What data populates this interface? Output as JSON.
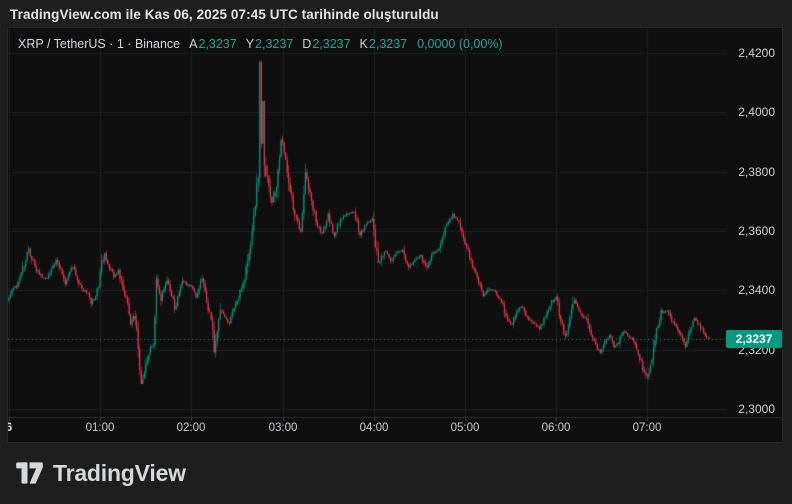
{
  "topbar": {
    "attribution": "TradingView.com ile Kas 06, 2025 07:45 UTC tarihinde oluşturuldu"
  },
  "legend": {
    "symbol_line": "XRP / TetherUS · 1 · Binance",
    "ohlc": [
      {
        "label": "A",
        "value": "2,3237"
      },
      {
        "label": "Y",
        "value": "2,3237"
      },
      {
        "label": "D",
        "value": "2,3237"
      },
      {
        "label": "K",
        "value": "2,3237"
      }
    ],
    "change": "0,0000 (0,00%)"
  },
  "price_scale": {
    "current": {
      "label": "2,3237",
      "value": 2.3237
    }
  },
  "footer": {
    "brand": "TradingView",
    "logo_icon": "tradingview-logo"
  },
  "colors": {
    "up": "#089981",
    "down": "#f23645",
    "accent_text": "#26a69a",
    "grid": "#1f2022",
    "axis_border": "#2c2e31",
    "axis_tick": "#3a3c40",
    "chart_bg": "#0f0f0f",
    "outer_bg": "#1e1e1e"
  },
  "chart_data": {
    "type": "candlestick",
    "title": "XRP / TetherUS · 1 · Binance",
    "interval_minutes": 1,
    "grid": true,
    "last_close": 2.3237,
    "session_high": 2.4165,
    "session_low": 2.3086,
    "y_axis": {
      "visible_range": [
        2.2973,
        2.4284
      ],
      "ticks": [
        {
          "label": "2,4200",
          "price": 2.42
        },
        {
          "label": "2,4000",
          "price": 2.4
        },
        {
          "label": "2,3800",
          "price": 2.38
        },
        {
          "label": "2,3600",
          "price": 2.36
        },
        {
          "label": "2,3400",
          "price": 2.34
        },
        {
          "label": "2,3200",
          "price": 2.32
        },
        {
          "label": "2,3000",
          "price": 2.3
        }
      ]
    },
    "x_axis": {
      "unit": "minutes after 00:00 UTC, Kas 06 2025",
      "ticks": [
        {
          "label": "6",
          "minute": 0,
          "day_boundary": true
        },
        {
          "label": "01:00",
          "minute": 60
        },
        {
          "label": "02:00",
          "minute": 120
        },
        {
          "label": "03:00",
          "minute": 180
        },
        {
          "label": "04:00",
          "minute": 240
        },
        {
          "label": "05:00",
          "minute": 300
        },
        {
          "label": "06:00",
          "minute": 360
        },
        {
          "label": "07:00",
          "minute": 420
        }
      ]
    },
    "candle_range_minutes": [
      -6,
      461
    ],
    "price_path": [
      [
        -6,
        2.34
      ],
      [
        -3,
        2.3375
      ],
      [
        0,
        2.3365
      ],
      [
        3,
        2.34
      ],
      [
        6,
        2.3415
      ],
      [
        9,
        2.345
      ],
      [
        12,
        2.351
      ],
      [
        14,
        2.3535
      ],
      [
        17,
        2.3495
      ],
      [
        20,
        2.346
      ],
      [
        23,
        2.3445
      ],
      [
        26,
        2.344
      ],
      [
        29,
        2.347
      ],
      [
        32,
        2.3505
      ],
      [
        35,
        2.3465
      ],
      [
        38,
        2.3425
      ],
      [
        41,
        2.346
      ],
      [
        43,
        2.348
      ],
      [
        46,
        2.344
      ],
      [
        49,
        2.3405
      ],
      [
        52,
        2.3395
      ],
      [
        55,
        2.336
      ],
      [
        58,
        2.3375
      ],
      [
        60,
        2.342
      ],
      [
        62,
        2.349
      ],
      [
        64,
        2.3525
      ],
      [
        67,
        2.348
      ],
      [
        70,
        2.345
      ],
      [
        73,
        2.3465
      ],
      [
        76,
        2.341
      ],
      [
        79,
        2.335
      ],
      [
        81,
        2.3295
      ],
      [
        83,
        2.332
      ],
      [
        85,
        2.3275
      ],
      [
        87,
        2.3145
      ],
      [
        88,
        2.309
      ],
      [
        90,
        2.312
      ],
      [
        92,
        2.3165
      ],
      [
        94,
        2.32
      ],
      [
        96,
        2.3215
      ],
      [
        98,
        2.3435
      ],
      [
        101,
        2.3375
      ],
      [
        103,
        2.34
      ],
      [
        105,
        2.343
      ],
      [
        108,
        2.3385
      ],
      [
        110,
        2.334
      ],
      [
        113,
        2.339
      ],
      [
        115,
        2.344
      ],
      [
        118,
        2.342
      ],
      [
        121,
        2.3415
      ],
      [
        124,
        2.338
      ],
      [
        126,
        2.341
      ],
      [
        128,
        2.344
      ],
      [
        131,
        2.3365
      ],
      [
        134,
        2.3295
      ],
      [
        136,
        2.321
      ],
      [
        138,
        2.3265
      ],
      [
        140,
        2.334
      ],
      [
        143,
        2.3305
      ],
      [
        146,
        2.329
      ],
      [
        149,
        2.3335
      ],
      [
        152,
        2.338
      ],
      [
        155,
        2.3425
      ],
      [
        158,
        2.35
      ],
      [
        160,
        2.356
      ],
      [
        163,
        2.37
      ],
      [
        165,
        2.378
      ],
      [
        166,
        2.416
      ],
      [
        167,
        2.388
      ],
      [
        168,
        2.405
      ],
      [
        169,
        2.384
      ],
      [
        171,
        2.376
      ],
      [
        174,
        2.371
      ],
      [
        177,
        2.374
      ],
      [
        180,
        2.3915
      ],
      [
        183,
        2.385
      ],
      [
        186,
        2.374
      ],
      [
        189,
        2.3655
      ],
      [
        193,
        2.36
      ],
      [
        196,
        2.379
      ],
      [
        199,
        2.372
      ],
      [
        203,
        2.3635
      ],
      [
        207,
        2.359
      ],
      [
        211,
        2.3655
      ],
      [
        215,
        2.3585
      ],
      [
        219,
        2.3635
      ],
      [
        224,
        2.366
      ],
      [
        228,
        2.3665
      ],
      [
        232,
        2.359
      ],
      [
        236,
        2.3625
      ],
      [
        240,
        2.364
      ],
      [
        244,
        2.348
      ],
      [
        248,
        2.3535
      ],
      [
        252,
        2.3495
      ],
      [
        256,
        2.3525
      ],
      [
        260,
        2.3535
      ],
      [
        264,
        2.3475
      ],
      [
        268,
        2.3505
      ],
      [
        272,
        2.3515
      ],
      [
        276,
        2.3475
      ],
      [
        280,
        2.3525
      ],
      [
        284,
        2.354
      ],
      [
        288,
        2.3615
      ],
      [
        293,
        2.3655
      ],
      [
        297,
        2.3635
      ],
      [
        301,
        2.3565
      ],
      [
        305,
        2.3495
      ],
      [
        309,
        2.3445
      ],
      [
        313,
        2.3385
      ],
      [
        317,
        2.3405
      ],
      [
        321,
        2.3395
      ],
      [
        325,
        2.336
      ],
      [
        329,
        2.33
      ],
      [
        332,
        2.3285
      ],
      [
        335,
        2.333
      ],
      [
        338,
        2.3345
      ],
      [
        342,
        2.3305
      ],
      [
        346,
        2.329
      ],
      [
        350,
        2.327
      ],
      [
        354,
        2.3315
      ],
      [
        358,
        2.336
      ],
      [
        361,
        2.3375
      ],
      [
        364,
        2.33
      ],
      [
        367,
        2.3245
      ],
      [
        370,
        2.33
      ],
      [
        372,
        2.337
      ],
      [
        375,
        2.3345
      ],
      [
        378,
        2.3315
      ],
      [
        381,
        2.33
      ],
      [
        384,
        2.3245
      ],
      [
        387,
        2.3215
      ],
      [
        390,
        2.319
      ],
      [
        393,
        2.3225
      ],
      [
        396,
        2.325
      ],
      [
        399,
        2.3215
      ],
      [
        402,
        2.322
      ],
      [
        405,
        2.327
      ],
      [
        408,
        2.3245
      ],
      [
        411,
        2.3235
      ],
      [
        414,
        2.3195
      ],
      [
        417,
        2.3155
      ],
      [
        419,
        2.3125
      ],
      [
        421,
        2.3105
      ],
      [
        424,
        2.317
      ],
      [
        427,
        2.326
      ],
      [
        430,
        2.3325
      ],
      [
        434,
        2.3331
      ],
      [
        437,
        2.33
      ],
      [
        440,
        2.3275
      ],
      [
        443,
        2.3245
      ],
      [
        446,
        2.3215
      ],
      [
        449,
        2.327
      ],
      [
        452,
        2.33
      ],
      [
        455,
        2.3285
      ],
      [
        458,
        2.3255
      ],
      [
        461,
        2.3237
      ]
    ]
  }
}
